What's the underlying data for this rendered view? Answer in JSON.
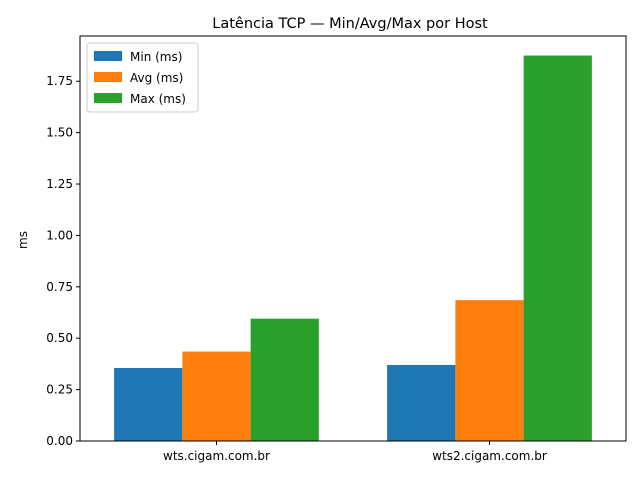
{
  "chart_data": {
    "type": "bar",
    "title": "Latência TCP — Min/Avg/Max por Host",
    "xlabel": "",
    "ylabel": "ms",
    "categories": [
      "wts.cigam.com.br",
      "wts2.cigam.com.br"
    ],
    "series": [
      {
        "name": "Min (ms)",
        "color": "#1f77b4",
        "values": [
          0.355,
          0.37
        ]
      },
      {
        "name": "Avg (ms)",
        "color": "#ff7f0e",
        "values": [
          0.435,
          0.685
        ]
      },
      {
        "name": "Max (ms)",
        "color": "#2ca02c",
        "values": [
          0.595,
          1.875
        ]
      }
    ],
    "ylim": [
      0,
      1.97
    ],
    "yticks": [
      0.0,
      0.25,
      0.5,
      0.75,
      1.0,
      1.25,
      1.5,
      1.75
    ],
    "ytick_labels": [
      "0.00",
      "0.25",
      "0.50",
      "0.75",
      "1.00",
      "1.25",
      "1.50",
      "1.75"
    ],
    "legend_position": "top-left",
    "grid": false
  }
}
